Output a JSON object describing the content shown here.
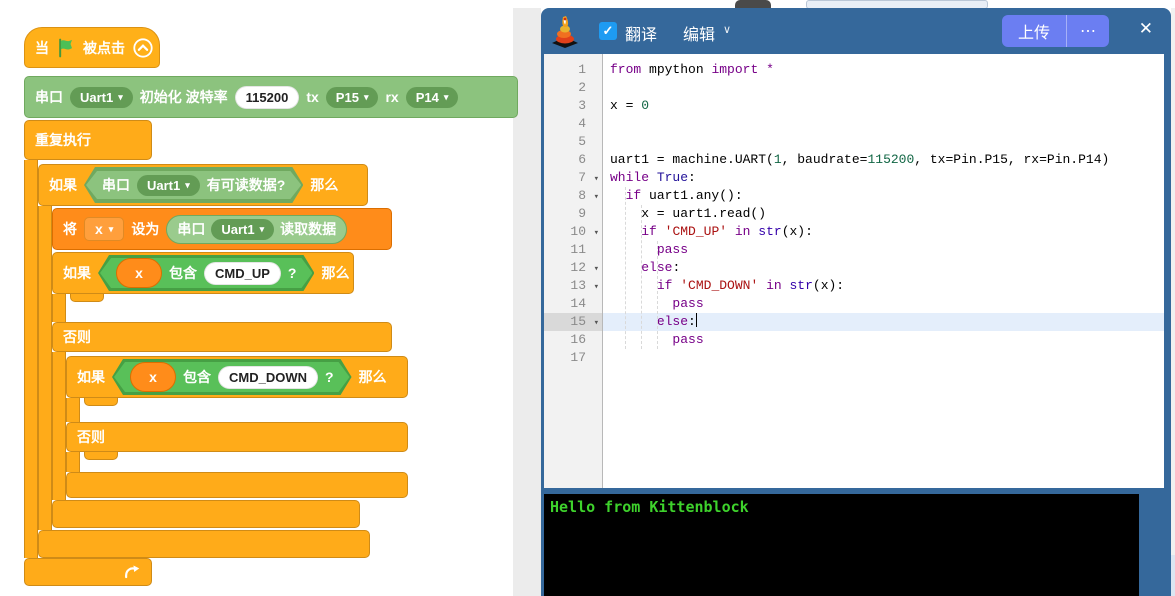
{
  "workspace": {
    "labels": {
      "when": "当",
      "clicked": "被点击",
      "forever": "重复执行",
      "if": "如果",
      "then": "那么",
      "else": "否则"
    },
    "serial_init": {
      "port_label": "串口",
      "uart": "Uart1",
      "init_label": "初始化 波特率",
      "baudrate": "115200",
      "tx_label": "tx",
      "tx_pin": "P15",
      "rx_label": "rx",
      "rx_pin": "P14"
    },
    "readable_cond": {
      "port_label": "串口",
      "uart": "Uart1",
      "question": "有可读数据?"
    },
    "set_block": {
      "set": "将",
      "var": "x",
      "to": "设为"
    },
    "read_reporter": {
      "port_label": "串口",
      "uart": "Uart1",
      "read_label": "读取数据"
    },
    "contains_up": {
      "var": "x",
      "contains": "包含",
      "value": "CMD_UP",
      "q": "?"
    },
    "contains_down": {
      "var": "x",
      "contains": "包含",
      "value": "CMD_DOWN",
      "q": "?"
    },
    "icons": {
      "dropdown_caret": "▾"
    }
  },
  "panel": {
    "header": {
      "translate": "翻译",
      "edit": "编辑",
      "edit_caret": "∨",
      "upload": "上传",
      "more": "⋯",
      "close": "✕",
      "checkbox_check": "✓"
    },
    "editor": {
      "active_line": 15,
      "fold_glyph": "▾",
      "lines": [
        {
          "num": 1,
          "fold": false,
          "tokens": [
            {
              "t": "from",
              "c": "kw"
            },
            {
              "t": " mpython ",
              "c": ""
            },
            {
              "t": "import",
              "c": "kw"
            },
            {
              "t": " ",
              "c": ""
            },
            {
              "t": "*",
              "c": "kw"
            }
          ]
        },
        {
          "num": 2,
          "fold": false,
          "tokens": []
        },
        {
          "num": 3,
          "fold": false,
          "tokens": [
            {
              "t": "x = ",
              "c": ""
            },
            {
              "t": "0",
              "c": "num"
            }
          ]
        },
        {
          "num": 4,
          "fold": false,
          "tokens": []
        },
        {
          "num": 5,
          "fold": false,
          "tokens": []
        },
        {
          "num": 6,
          "fold": false,
          "tokens": [
            {
              "t": "uart1 = machine.UART(",
              "c": ""
            },
            {
              "t": "1",
              "c": "num"
            },
            {
              "t": ", baudrate=",
              "c": ""
            },
            {
              "t": "115200",
              "c": "num"
            },
            {
              "t": ", tx=Pin.P15, rx=Pin.P14)",
              "c": ""
            }
          ]
        },
        {
          "num": 7,
          "fold": true,
          "tokens": [
            {
              "t": "while",
              "c": "kw"
            },
            {
              "t": " ",
              "c": ""
            },
            {
              "t": "True",
              "c": "atom"
            },
            {
              "t": ":",
              "c": ""
            }
          ]
        },
        {
          "num": 8,
          "fold": true,
          "tokens": [
            {
              "t": "  ",
              "c": ""
            },
            {
              "t": "if",
              "c": "kw"
            },
            {
              "t": " uart1.any():",
              "c": ""
            }
          ]
        },
        {
          "num": 9,
          "fold": false,
          "tokens": [
            {
              "t": "    x = uart1.read()",
              "c": ""
            }
          ]
        },
        {
          "num": 10,
          "fold": true,
          "tokens": [
            {
              "t": "    ",
              "c": ""
            },
            {
              "t": "if",
              "c": "kw"
            },
            {
              "t": " ",
              "c": ""
            },
            {
              "t": "'CMD_UP'",
              "c": "str"
            },
            {
              "t": " ",
              "c": ""
            },
            {
              "t": "in",
              "c": "kw"
            },
            {
              "t": " ",
              "c": ""
            },
            {
              "t": "str",
              "c": "bi"
            },
            {
              "t": "(x):",
              "c": ""
            }
          ]
        },
        {
          "num": 11,
          "fold": false,
          "tokens": [
            {
              "t": "      ",
              "c": ""
            },
            {
              "t": "pass",
              "c": "kw"
            }
          ]
        },
        {
          "num": 12,
          "fold": true,
          "tokens": [
            {
              "t": "    ",
              "c": ""
            },
            {
              "t": "else",
              "c": "kw"
            },
            {
              "t": ":",
              "c": ""
            }
          ]
        },
        {
          "num": 13,
          "fold": true,
          "tokens": [
            {
              "t": "      ",
              "c": ""
            },
            {
              "t": "if",
              "c": "kw"
            },
            {
              "t": " ",
              "c": ""
            },
            {
              "t": "'CMD_DOWN'",
              "c": "str"
            },
            {
              "t": " ",
              "c": ""
            },
            {
              "t": "in",
              "c": "kw"
            },
            {
              "t": " ",
              "c": ""
            },
            {
              "t": "str",
              "c": "bi"
            },
            {
              "t": "(x):",
              "c": ""
            }
          ]
        },
        {
          "num": 14,
          "fold": false,
          "tokens": [
            {
              "t": "        ",
              "c": ""
            },
            {
              "t": "pass",
              "c": "kw"
            }
          ]
        },
        {
          "num": 15,
          "fold": true,
          "cursor": true,
          "tokens": [
            {
              "t": "      ",
              "c": ""
            },
            {
              "t": "else",
              "c": "kw"
            },
            {
              "t": ":",
              "c": ""
            }
          ]
        },
        {
          "num": 16,
          "fold": false,
          "tokens": [
            {
              "t": "        ",
              "c": ""
            },
            {
              "t": "pass",
              "c": "kw"
            }
          ]
        },
        {
          "num": 17,
          "fold": false,
          "tokens": []
        }
      ]
    },
    "terminal": {
      "output": "Hello from Kittenblock"
    }
  },
  "colors": {
    "panel_blue": "#35689B",
    "button_purple": "#6B7EF2",
    "checkbox_blue": "#1E9BF2",
    "control_orange": "#FFAB19",
    "variable_orange": "#FF8C1A",
    "extension_green": "#8CC37E",
    "operator_green": "#59C059",
    "terminal_green": "#3ED22C",
    "keyword": "#770088",
    "number": "#116644",
    "string": "#aa1111",
    "atom": "#221199",
    "builtin": "#3300aa"
  }
}
